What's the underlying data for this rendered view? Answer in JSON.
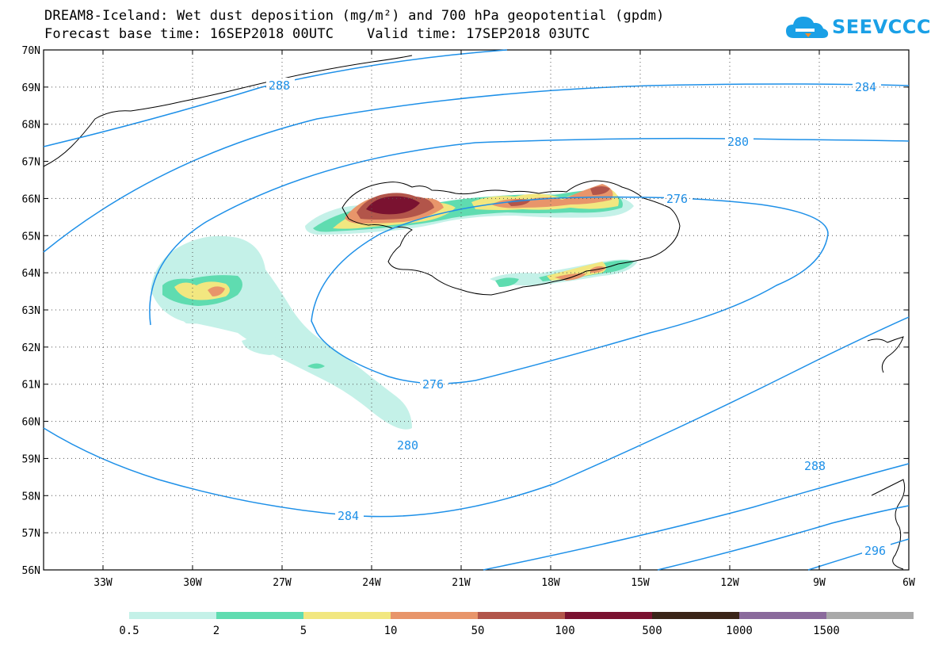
{
  "title": {
    "line1": "DREAM8-Iceland: Wet dust deposition (mg/m²) and 700 hPa geopotential (gpdm)",
    "line2": "Forecast base time: 16SEP2018 00UTC    Valid time: 17SEP2018 03UTC"
  },
  "logo": {
    "text": "SEEVCCC",
    "icon": "cloud-logo-icon",
    "color": "#1aa0e6"
  },
  "map": {
    "lat_labels": [
      "70N",
      "69N",
      "68N",
      "67N",
      "66N",
      "65N",
      "64N",
      "63N",
      "62N",
      "61N",
      "60N",
      "59N",
      "58N",
      "57N",
      "56N"
    ],
    "lon_labels": [
      "33W",
      "30W",
      "27W",
      "24W",
      "21W",
      "18W",
      "15W",
      "12W",
      "9W",
      "6W"
    ],
    "contour_color": "#1e90e8",
    "contour_labels": [
      "288",
      "284",
      "280",
      "276",
      "276",
      "280",
      "284",
      "288",
      "296"
    ]
  },
  "colorbar": {
    "labels": [
      "0.5",
      "2",
      "5",
      "10",
      "50",
      "100",
      "500",
      "1000",
      "1500"
    ],
    "colors": [
      "#c4f1e8",
      "#5fdcb0",
      "#f2e780",
      "#e8956a",
      "#b2554a",
      "#7a1230",
      "#3a2418",
      "#8a6a9c",
      "#a9a9a9"
    ]
  }
}
